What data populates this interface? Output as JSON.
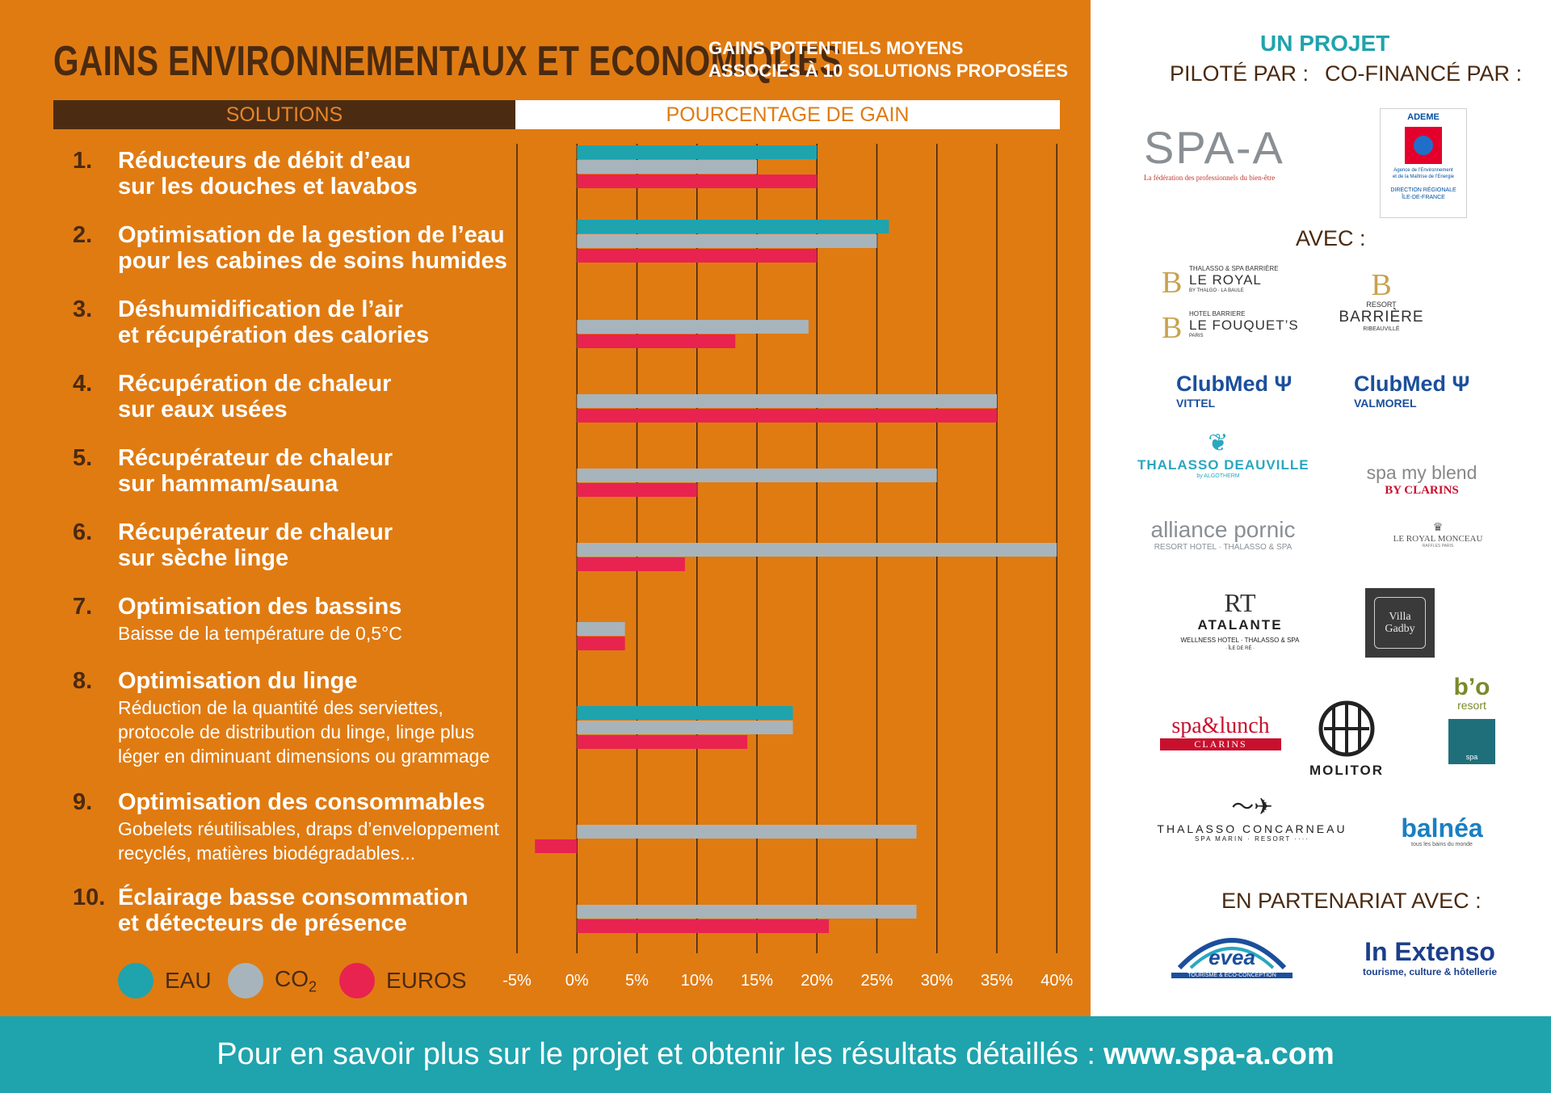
{
  "header": {
    "title": "GAINS ENVIRONNEMENTAUX ET ECONOMIQUES",
    "subtitle_line1": "GAINS POTENTIELS MOYENS",
    "subtitle_line2": "ASSOCIÉS À 10 SOLUTIONS PROPOSÉES",
    "col_solutions": "SOLUTIONS",
    "col_gain": "POURCENTAGE DE GAIN"
  },
  "rows": [
    {
      "num": "1.",
      "title": "Réducteurs de débit d’eau\nsur les douches et lavabos",
      "desc": ""
    },
    {
      "num": "2.",
      "title": "Optimisation de la gestion de l’eau\npour les cabines de soins humides",
      "desc": ""
    },
    {
      "num": "3.",
      "title": "Déshumidification de l’air\net récupération des calories",
      "desc": ""
    },
    {
      "num": "4.",
      "title": "Récupération de chaleur\nsur eaux usées",
      "desc": ""
    },
    {
      "num": "5.",
      "title": "Récupérateur de chaleur\nsur hammam/sauna",
      "desc": ""
    },
    {
      "num": "6.",
      "title": "Récupérateur de chaleur\nsur sèche linge",
      "desc": ""
    },
    {
      "num": "7.",
      "title": "Optimisation des bassins",
      "desc": "Baisse de la température de 0,5°C"
    },
    {
      "num": "8.",
      "title": "Optimisation du linge",
      "desc": "Réduction de la quantité des serviettes,\nprotocole de distribution du linge, linge plus\nléger en diminuant dimensions ou grammage"
    },
    {
      "num": "9.",
      "title": "Optimisation des consommables",
      "desc": "Gobelets réutilisables, draps d’enveloppement\nrecyclés, matières biodégradables..."
    },
    {
      "num": "10.",
      "title": "Éclairage basse consommation\net détecteurs de présence",
      "desc": ""
    }
  ],
  "legend": {
    "eau": "EAU",
    "co2": "CO",
    "co2_sub": "2",
    "euros": "EUROS"
  },
  "colors": {
    "eau": "#1fa3ad",
    "co2": "#a8b4bb",
    "euros": "#e8234f",
    "orange": "#e07b12",
    "brown": "#4a2a10"
  },
  "chart_data": {
    "type": "bar",
    "orientation": "horizontal",
    "categories": [
      "1.",
      "2.",
      "3.",
      "4.",
      "5.",
      "6.",
      "7.",
      "8.",
      "9.",
      "10."
    ],
    "series": [
      {
        "name": "EAU",
        "values": [
          20,
          26,
          null,
          null,
          null,
          null,
          null,
          18,
          null,
          null
        ]
      },
      {
        "name": "CO2",
        "values": [
          15,
          25,
          19.3,
          35,
          30,
          40,
          4,
          18,
          28.3,
          28.3
        ]
      },
      {
        "name": "EUROS",
        "values": [
          20,
          20,
          13.2,
          35,
          10,
          9,
          4,
          14.2,
          -3.5,
          21
        ]
      }
    ],
    "xlim": [
      -5,
      40
    ],
    "x_ticks": [
      "-5%",
      "0%",
      "5%",
      "10%",
      "15%",
      "20%",
      "25%",
      "30%",
      "35%",
      "40%"
    ],
    "x_tick_values": [
      -5,
      0,
      5,
      10,
      15,
      20,
      25,
      30,
      35,
      40
    ],
    "grid": true,
    "legend_position": "bottom-left"
  },
  "sidebar": {
    "un_projet": "UN PROJET",
    "pilote_par": "PILOTÉ PAR :",
    "cofinance_par": "CO-FINANCÉ PAR :",
    "avec": "AVEC :",
    "partenariat": "EN PARTENARIAT AVEC :",
    "spa_a_logo": "SPA-A",
    "spa_a_tagline": "La fédération des professionnels du bien-être",
    "ademe": "ADEME",
    "ademe_sub1": "Agence de l’Environnement",
    "ademe_sub2": "et de la Maîtrise de l’Energie",
    "ademe_sub3": "DIRECTION RÉGIONALE",
    "ademe_sub4": "ÎLE-DE-FRANCE",
    "le_royal_top": "THALASSO & SPA BARRIÈRE",
    "le_royal": "LE ROYAL",
    "le_royal_sub": "BY THALGO · LA BAULE",
    "fouquets_top": "HOTEL BARRIERE",
    "fouquets": "LE FOUQUET’S",
    "fouquets_sub": "PARIS",
    "barriere_top": "RESORT",
    "barriere": "BARRIÈRE",
    "barriere_sub": "RIBEAUVILLÉ",
    "clubmed": "ClubMed",
    "vittel": "VITTEL",
    "valmorel": "VALMOREL",
    "deauville": "THALASSO DEAUVILLE",
    "deauville_sub": "by ALGOTHERM",
    "spa_my_blend": "spa my blend",
    "by_clarins": "BY CLARINS",
    "alliance": "alliance pornic",
    "alliance_sub": "RESORT HOTEL · THALASSO & SPA",
    "royal_monceau": "LE ROYAL MONCEAU",
    "royal_monceau_sub": "RAFFLES PARIS",
    "atalante_mark": "RT",
    "atalante": "ATALANTE",
    "atalante_sub": "WELLNESS HOTEL · THALASSO & SPA",
    "atalante_sub2": "· ÎLE DE RÉ ·",
    "villa_gadby": "Villa Gadby",
    "spa_lunch": "spa&lunch",
    "spa_lunch_clarins": "CLARINS",
    "molitor": "MOLITOR",
    "bo": "b’o",
    "bo_resort": "resort",
    "bo_spa": "spa",
    "concarneau": "THALASSO CONCARNEAU",
    "concarneau_sub": "SPA MARIN · RESORT ····",
    "balnea": "balnéa",
    "balnea_sub": "tous les bains du monde",
    "evea": "evea",
    "evea_sub": "TOURISME & ECO-CONCEPTION",
    "in_extenso": "In Extenso",
    "in_extenso_sub": "tourisme, culture & hôtellerie"
  },
  "footer": {
    "text": "Pour en savoir plus sur le projet et obtenir les résultats  détaillés :",
    "url": "www.spa-a.com"
  }
}
